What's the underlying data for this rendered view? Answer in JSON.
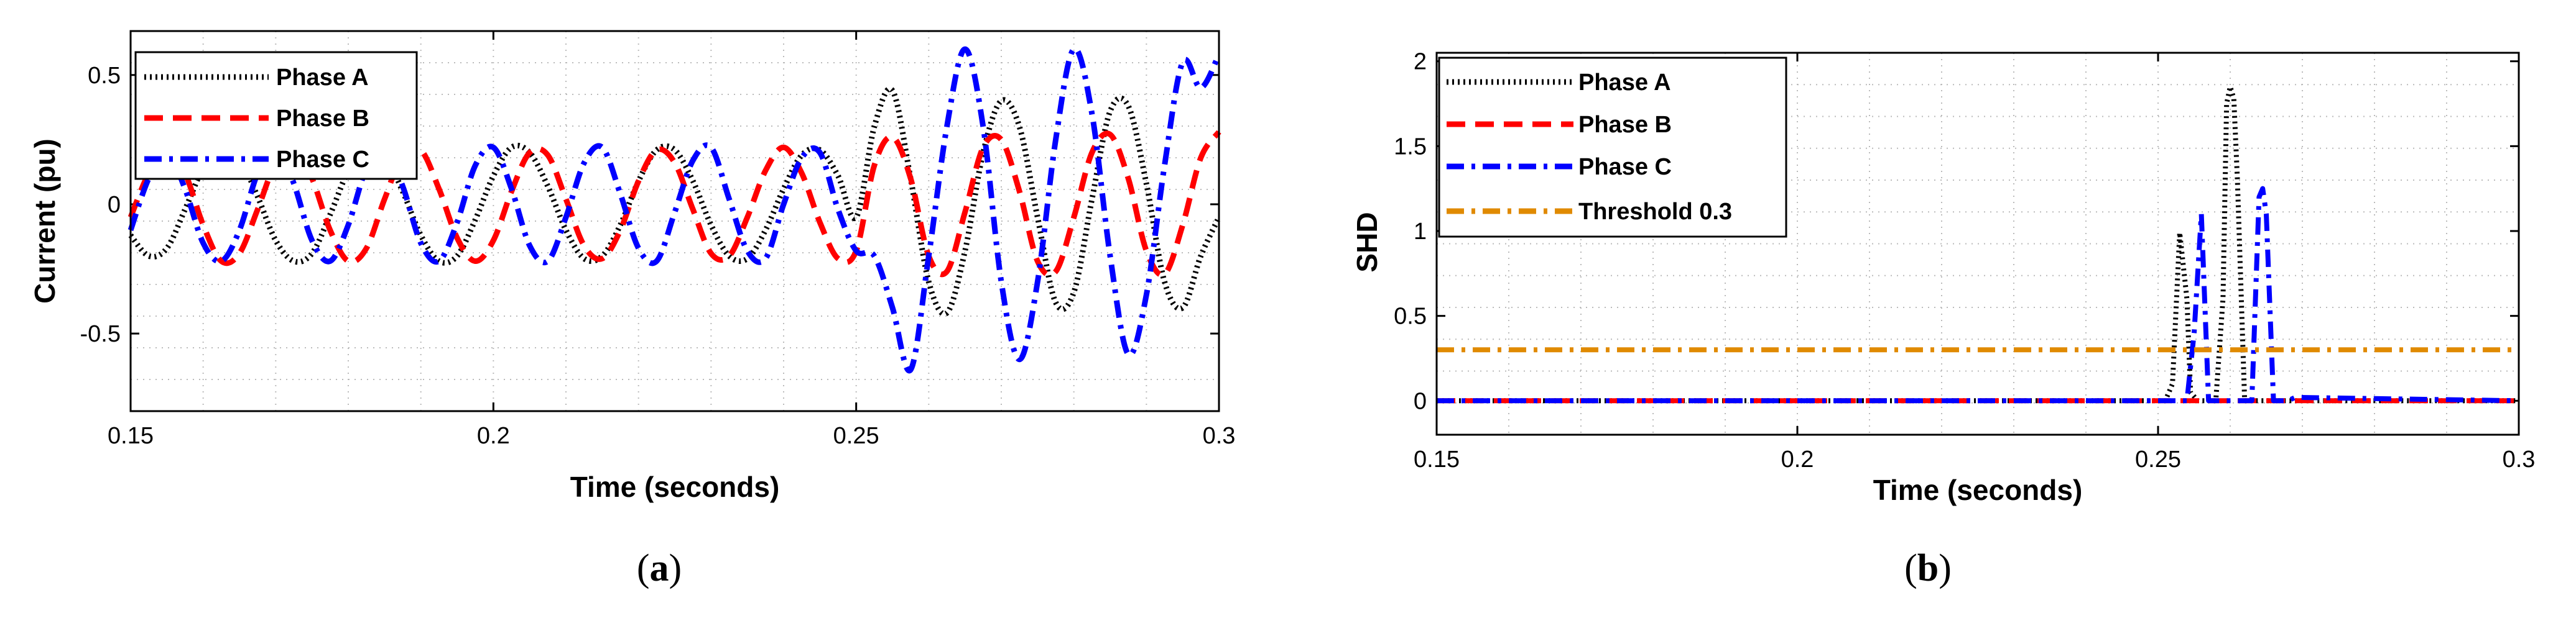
{
  "colors": {
    "phase_a": "#000000",
    "phase_b": "#ff0000",
    "phase_c": "#0000ff",
    "threshold": "#e08a00",
    "grid": "#bbbbbb"
  },
  "chart_data": [
    {
      "type": "line",
      "sublabel_prefix": "(",
      "sublabel_letter": "a",
      "sublabel_suffix": ")",
      "xlabel": "Time (seconds)",
      "ylabel": "Current (pu)",
      "xlim": [
        0.15,
        0.3
      ],
      "ylim": [
        -0.8,
        0.67
      ],
      "xticks": [
        0.15,
        0.2,
        0.25,
        0.3
      ],
      "xtick_labels": [
        "0.15",
        "0.2",
        "0.25",
        "0.3"
      ],
      "yticks": [
        -0.5,
        0,
        0.5
      ],
      "ytick_labels": [
        "-0.5",
        "0",
        "0.5"
      ],
      "grid": true,
      "legend_position": "top-left",
      "series": [
        {
          "name": "Phase A",
          "style": "dotted",
          "x": [
            0.15,
            0.1525,
            0.155,
            0.1575,
            0.16,
            0.1625,
            0.165,
            0.1675,
            0.17,
            0.1725,
            0.175,
            0.1775,
            0.18,
            0.1825,
            0.185,
            0.1875,
            0.19,
            0.1925,
            0.195,
            0.1975,
            0.2,
            0.2025,
            0.205,
            0.2075,
            0.21,
            0.2125,
            0.215,
            0.2175,
            0.22,
            0.2225,
            0.225,
            0.2275,
            0.23,
            0.2325,
            0.235,
            0.2375,
            0.24,
            0.2425,
            0.245,
            0.2475,
            0.25,
            0.2525,
            0.255,
            0.2575,
            0.26,
            0.2625,
            0.265,
            0.2675,
            0.27,
            0.2725,
            0.275,
            0.2775,
            0.28,
            0.2825,
            0.285,
            0.2875,
            0.29,
            0.2925,
            0.295,
            0.2975,
            0.3
          ],
          "y": [
            -0.12,
            -0.2,
            -0.17,
            -0.02,
            0.14,
            0.22,
            0.18,
            0.03,
            -0.14,
            -0.22,
            -0.19,
            -0.04,
            0.13,
            0.22,
            0.19,
            0.05,
            -0.12,
            -0.22,
            -0.2,
            -0.06,
            0.11,
            0.22,
            0.2,
            0.07,
            -0.1,
            -0.21,
            -0.2,
            -0.08,
            0.09,
            0.21,
            0.21,
            0.09,
            -0.08,
            -0.2,
            -0.21,
            -0.1,
            0.06,
            0.19,
            0.21,
            0.11,
            -0.05,
            0.3,
            0.44,
            0.1,
            -0.3,
            -0.42,
            -0.18,
            0.2,
            0.4,
            0.3,
            -0.05,
            -0.38,
            -0.34,
            0.02,
            0.36,
            0.38,
            0.08,
            -0.3,
            -0.4,
            -0.2,
            -0.05
          ]
        },
        {
          "name": "Phase B",
          "style": "dashed",
          "x": [
            0.15,
            0.1525,
            0.155,
            0.1575,
            0.16,
            0.1625,
            0.165,
            0.1675,
            0.17,
            0.1725,
            0.175,
            0.1775,
            0.18,
            0.1825,
            0.185,
            0.1875,
            0.19,
            0.1925,
            0.195,
            0.1975,
            0.2,
            0.2025,
            0.205,
            0.2075,
            0.21,
            0.2125,
            0.215,
            0.2175,
            0.22,
            0.2225,
            0.225,
            0.2275,
            0.23,
            0.2325,
            0.235,
            0.2375,
            0.24,
            0.2425,
            0.245,
            0.2475,
            0.25,
            0.2525,
            0.255,
            0.2575,
            0.26,
            0.2625,
            0.265,
            0.2675,
            0.27,
            0.2725,
            0.275,
            0.2775,
            0.28,
            0.2825,
            0.285,
            0.2875,
            0.29,
            0.2925,
            0.295,
            0.2975,
            0.3
          ],
          "y": [
            -0.05,
            0.12,
            0.21,
            0.12,
            -0.08,
            -0.22,
            -0.19,
            -0.02,
            0.16,
            0.22,
            0.1,
            -0.1,
            -0.22,
            -0.17,
            0.02,
            0.19,
            0.21,
            0.06,
            -0.13,
            -0.22,
            -0.14,
            0.05,
            0.2,
            0.19,
            0.02,
            -0.16,
            -0.21,
            -0.1,
            0.09,
            0.21,
            0.16,
            -0.02,
            -0.19,
            -0.2,
            -0.05,
            0.13,
            0.22,
            0.12,
            -0.07,
            -0.21,
            -0.18,
            0.15,
            0.26,
            0.1,
            -0.2,
            -0.26,
            -0.03,
            0.22,
            0.25,
            0.05,
            -0.22,
            -0.26,
            -0.05,
            0.2,
            0.27,
            0.1,
            -0.18,
            -0.27,
            -0.08,
            0.18,
            0.28
          ]
        },
        {
          "name": "Phase C",
          "style": "dashdot",
          "x": [
            0.15,
            0.1525,
            0.155,
            0.1575,
            0.16,
            0.1625,
            0.165,
            0.1675,
            0.17,
            0.1725,
            0.175,
            0.1775,
            0.18,
            0.1825,
            0.185,
            0.1875,
            0.19,
            0.1925,
            0.195,
            0.1975,
            0.2,
            0.2025,
            0.205,
            0.2075,
            0.21,
            0.2125,
            0.215,
            0.2175,
            0.22,
            0.2225,
            0.225,
            0.2275,
            0.23,
            0.2325,
            0.235,
            0.2375,
            0.24,
            0.2425,
            0.245,
            0.2475,
            0.25,
            0.2525,
            0.255,
            0.2575,
            0.26,
            0.2625,
            0.265,
            0.2675,
            0.27,
            0.2725,
            0.275,
            0.2775,
            0.28,
            0.2825,
            0.285,
            0.2875,
            0.29,
            0.2925,
            0.295,
            0.2975,
            0.3
          ],
          "y": [
            -0.1,
            0.1,
            0.2,
            0.06,
            -0.15,
            -0.22,
            -0.1,
            0.12,
            0.23,
            0.08,
            -0.14,
            -0.22,
            -0.08,
            0.14,
            0.22,
            0.07,
            -0.15,
            -0.22,
            -0.07,
            0.15,
            0.22,
            0.06,
            -0.16,
            -0.22,
            -0.05,
            0.16,
            0.22,
            0.04,
            -0.17,
            -0.22,
            -0.03,
            0.17,
            0.22,
            0.02,
            -0.18,
            -0.21,
            0.0,
            0.18,
            0.2,
            -0.02,
            -0.18,
            -0.2,
            -0.4,
            -0.64,
            -0.2,
            0.3,
            0.6,
            0.3,
            -0.3,
            -0.6,
            -0.3,
            0.25,
            0.6,
            0.35,
            -0.2,
            -0.58,
            -0.35,
            0.15,
            0.55,
            0.45,
            0.58
          ]
        }
      ]
    },
    {
      "type": "line",
      "sublabel_prefix": "(",
      "sublabel_letter": "b",
      "sublabel_suffix": ")",
      "xlabel": "Time (seconds)",
      "ylabel": "SHD",
      "xlim": [
        0.15,
        0.3
      ],
      "ylim": [
        -0.2,
        2.05
      ],
      "xticks": [
        0.15,
        0.2,
        0.25,
        0.3
      ],
      "xtick_labels": [
        "0.15",
        "0.2",
        "0.25",
        "0.3"
      ],
      "yticks": [
        0,
        0.5,
        1,
        1.5,
        2
      ],
      "ytick_labels": [
        "0",
        "0.5",
        "1",
        "1.5",
        "2"
      ],
      "grid": true,
      "legend_position": "top-left",
      "series": [
        {
          "name": "Phase A",
          "style": "dotted",
          "x": [
            0.15,
            0.251,
            0.252,
            0.253,
            0.254,
            0.2545,
            0.2555,
            0.258,
            0.259,
            0.2595,
            0.26,
            0.2605,
            0.261,
            0.262,
            0.263,
            0.3
          ],
          "y": [
            0,
            0,
            0.1,
            0.99,
            0.6,
            0.05,
            0,
            0,
            0.6,
            1.75,
            1.85,
            1.78,
            1.3,
            0,
            0,
            0
          ]
        },
        {
          "name": "Phase B",
          "style": "dashed",
          "x": [
            0.15,
            0.3
          ],
          "y": [
            0,
            0
          ]
        },
        {
          "name": "Phase C",
          "style": "dashdot",
          "x": [
            0.15,
            0.254,
            0.255,
            0.256,
            0.257,
            0.263,
            0.264,
            0.2645,
            0.265,
            0.266,
            0.268,
            0.269,
            0.3
          ],
          "y": [
            0,
            0,
            0.4,
            1.1,
            0,
            0,
            1.2,
            1.25,
            1.1,
            0,
            0,
            0.02,
            0
          ]
        },
        {
          "name": "Threshold 0.3",
          "style": "dashdot",
          "x": [
            0.15,
            0.3
          ],
          "y": [
            0.3,
            0.3
          ]
        }
      ]
    }
  ]
}
